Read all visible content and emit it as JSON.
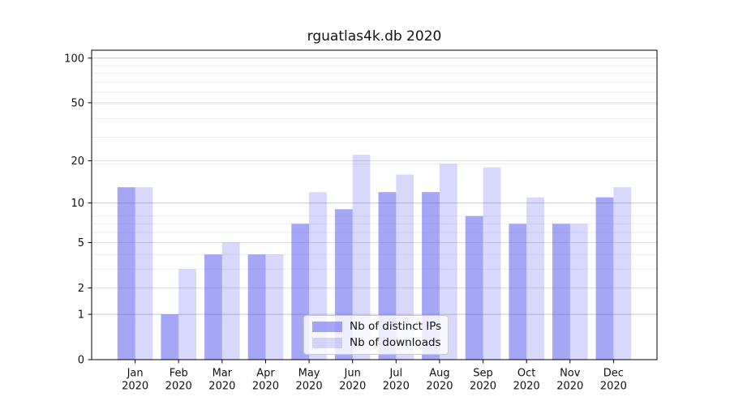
{
  "chart_data": {
    "type": "bar",
    "title": "rguatlas4k.db 2020",
    "xlabel": "",
    "ylabel": "",
    "categories": [
      "Jan 2020",
      "Feb 2020",
      "Mar 2020",
      "Apr 2020",
      "May 2020",
      "Jun 2020",
      "Jul 2020",
      "Aug 2020",
      "Sep 2020",
      "Oct 2020",
      "Nov 2020",
      "Dec 2020"
    ],
    "x_tick_labels": [
      [
        "Jan",
        "2020"
      ],
      [
        "Feb",
        "2020"
      ],
      [
        "Mar",
        "2020"
      ],
      [
        "Apr",
        "2020"
      ],
      [
        "May",
        "2020"
      ],
      [
        "Jun",
        "2020"
      ],
      [
        "Jul",
        "2020"
      ],
      [
        "Aug",
        "2020"
      ],
      [
        "Sep",
        "2020"
      ],
      [
        "Oct",
        "2020"
      ],
      [
        "Nov",
        "2020"
      ],
      [
        "Dec",
        "2020"
      ]
    ],
    "series": [
      {
        "name": "Nb of distinct IPs",
        "color": "#5555f0",
        "fill_opacity": 0.52,
        "values": [
          13,
          1,
          4,
          4,
          7,
          9,
          12,
          12,
          8,
          7,
          7,
          11
        ]
      },
      {
        "name": "Nb of downloads",
        "color": "#5555f0",
        "fill_opacity": 0.23,
        "values": [
          13,
          3,
          5,
          4,
          12,
          22,
          16,
          19,
          18,
          11,
          7,
          13
        ]
      }
    ],
    "yscale": "log1p",
    "ylim": [
      0,
      113
    ],
    "yticks": [
      0,
      1,
      2,
      5,
      10,
      20,
      50,
      100
    ],
    "minor_gridline_values": [
      3,
      4,
      6,
      7,
      8,
      19,
      29,
      39,
      49,
      59,
      69,
      79,
      89
    ],
    "grid": true,
    "legend_position": "lower center",
    "colors": {
      "spine": "#000000",
      "tick_label": "#111111",
      "grid_decade": "#c9c9c9",
      "grid_major": "#dedede",
      "grid_minor": "#ededed",
      "legend_border": "#cccccc",
      "legend_bg": "rgba(255,255,255,0.8)"
    }
  }
}
